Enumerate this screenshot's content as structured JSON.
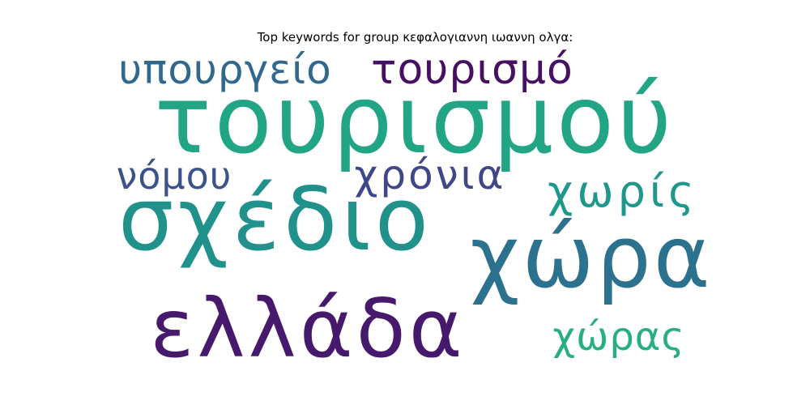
{
  "chart_data": {
    "type": "wordcloud",
    "title": "Top keywords for group κεφαλογιαννη ιωαννη ολγα:",
    "words": [
      {
        "text": "τουρισμού",
        "rank": 1,
        "color": "#21a585"
      },
      {
        "text": "σχέδιο",
        "rank": 2,
        "color": "#21918c"
      },
      {
        "text": "χώρα",
        "rank": 3,
        "color": "#2c728e"
      },
      {
        "text": "ελλάδα",
        "rank": 4,
        "color": "#46196c"
      },
      {
        "text": "χρόνια",
        "rank": 5,
        "color": "#3f4788"
      },
      {
        "text": "χωρίς",
        "rank": 6,
        "color": "#1f978b"
      },
      {
        "text": "υπουργείο",
        "rank": 7,
        "color": "#31688e"
      },
      {
        "text": "τουρισμό",
        "rank": 8,
        "color": "#471063"
      },
      {
        "text": "νόμου",
        "rank": 9,
        "color": "#3b528b"
      },
      {
        "text": "χώρας",
        "rank": 10,
        "color": "#29af7f"
      }
    ]
  }
}
